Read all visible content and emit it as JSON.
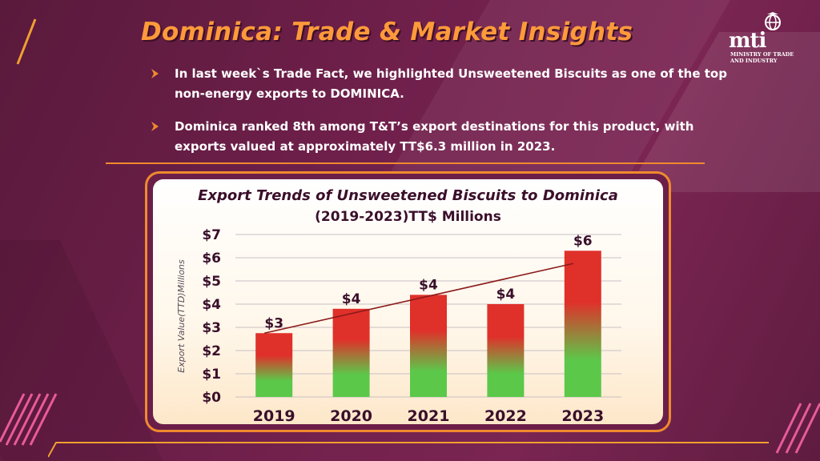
{
  "header": {
    "title": "Dominica: Trade & Market Insights",
    "logo_text": "mti",
    "logo_subtitle": "MINISTRY OF TRADE AND INDUSTRY"
  },
  "bullets": [
    {
      "text": "In last week`s Trade Fact, we highlighted Unsweetened Biscuits as one of the top non-energy exports to DOMINICA."
    },
    {
      "text": "Dominica ranked 8th among T&T’s export destinations for this product, with exports valued at approximately TT$6.3 million in 2023."
    }
  ],
  "colors": {
    "accent": "#f08a2e",
    "title": "#ff9a3a",
    "bar_top": "#e0302a",
    "bar_bottom": "#5cc84a",
    "trendline": "#8b1a1a",
    "text_dark": "#3a0f2a"
  },
  "chart_data": {
    "type": "bar",
    "title": "Export Trends of Unsweetened Biscuits to Dominica",
    "subtitle": "(2019-2023)TT$ Millions",
    "xlabel": "",
    "ylabel": "Export Value(TTD)Millions",
    "categories": [
      "2019",
      "2020",
      "2021",
      "2022",
      "2023"
    ],
    "values": [
      2.75,
      3.8,
      4.4,
      4.0,
      6.3
    ],
    "data_labels": [
      "$3",
      "$4",
      "$4",
      "$4",
      "$6"
    ],
    "ylim": [
      0,
      7
    ],
    "yticks": [
      0,
      1,
      2,
      3,
      4,
      5,
      6,
      7
    ],
    "ytick_labels": [
      "$0",
      "$1",
      "$2",
      "$3",
      "$4",
      "$5",
      "$6",
      "$7"
    ],
    "grid": true,
    "trendline": {
      "type": "linear",
      "start": 2.75,
      "end": 5.75
    }
  }
}
